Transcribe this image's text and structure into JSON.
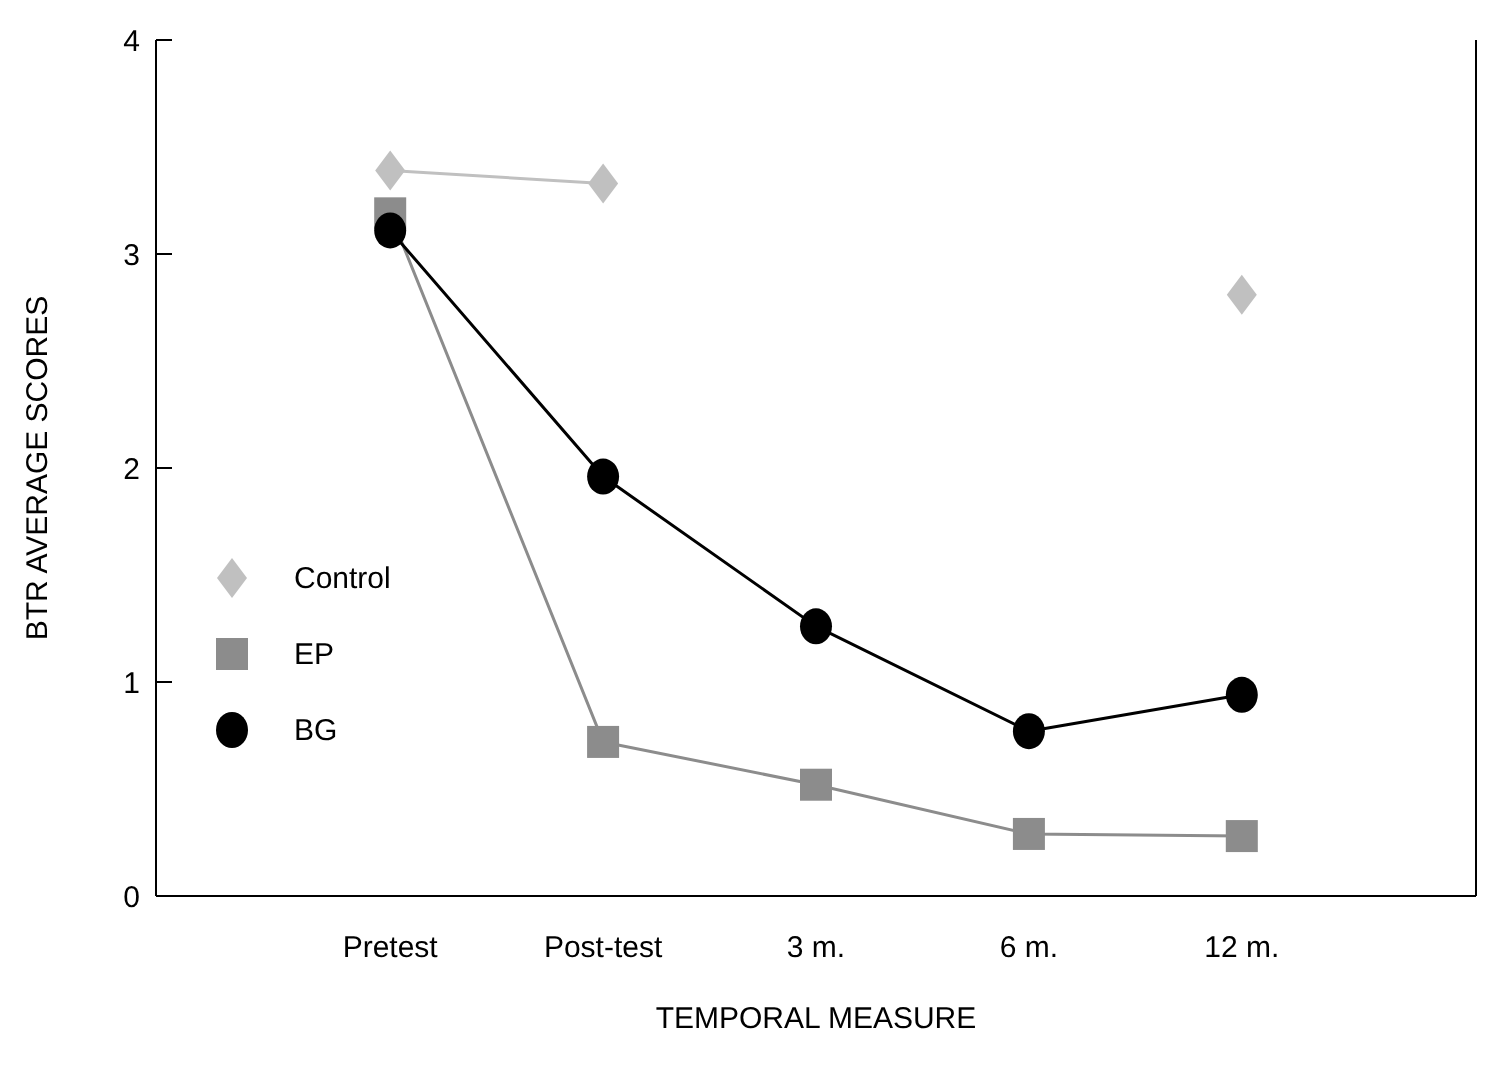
{
  "chart_data": {
    "type": "line",
    "xlabel": "TEMPORAL MEASURE",
    "ylabel": "BTR AVERAGE SCORES",
    "categories": [
      "Pretest",
      "Post-test",
      "3 m.",
      "6 m.",
      "12 m."
    ],
    "ylim": [
      0,
      4
    ],
    "yticks": [
      0,
      1,
      2,
      3,
      4
    ],
    "grid": false,
    "legend": "left",
    "series": [
      {
        "name": "Control",
        "color": "#c0c0c0",
        "marker": "diamond",
        "values": [
          3.39,
          3.33,
          null,
          null,
          2.81
        ]
      },
      {
        "name": "EP",
        "color": "#8c8c8c",
        "marker": "square",
        "values": [
          3.19,
          0.72,
          0.52,
          0.29,
          0.28
        ]
      },
      {
        "name": "BG",
        "color": "#000000",
        "marker": "circle",
        "values": [
          3.11,
          1.96,
          1.26,
          0.77,
          0.94
        ]
      }
    ]
  }
}
